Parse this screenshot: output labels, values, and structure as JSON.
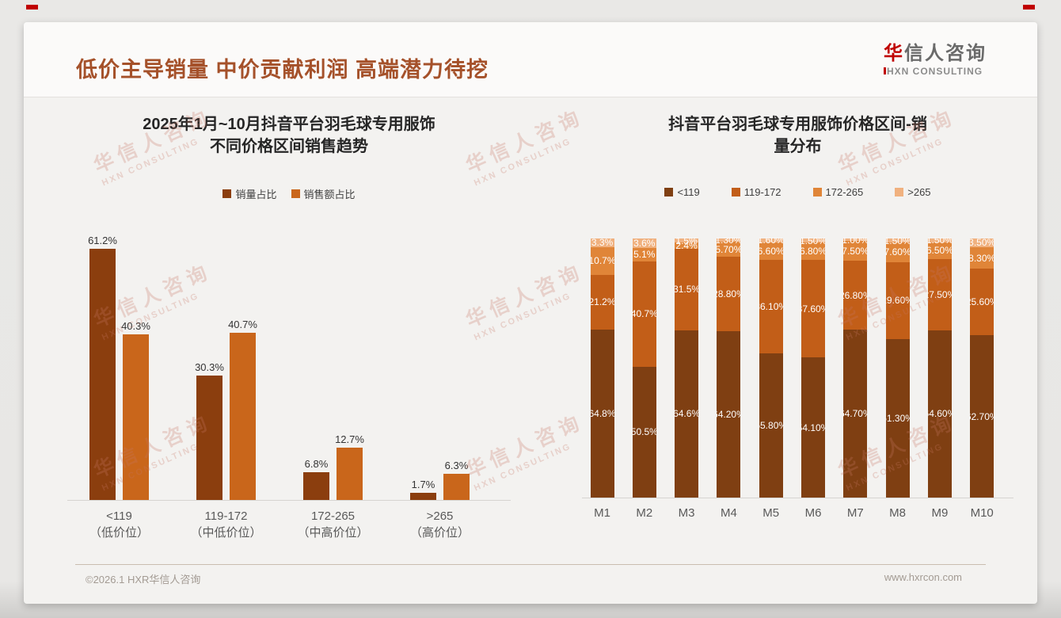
{
  "header": {
    "title": "低价主导销量 中价贡献利润 高端潜力待挖",
    "logo": {
      "zh_accent": "华",
      "zh_rest": "信人咨询",
      "en": "XN CONSULTING"
    }
  },
  "watermark": {
    "zh": "华信人咨询",
    "en": "HXN CONSULTING"
  },
  "footer": {
    "copyright": "©2026.1 HXR华信人咨询",
    "website": "www.hxrcon.com"
  },
  "colors": {
    "title_accent": "#A5512A",
    "logo_red": "#C00000",
    "sales_share": "#8B3E0E",
    "revenue_share": "#C9661B",
    "band_lt119": "#7F3F12",
    "band_119_172": "#C25E18",
    "band_172_265": "#E08538",
    "band_gt265": "#F0B17F"
  },
  "chart_data": [
    {
      "type": "bar",
      "title_lines": [
        "2025年1月~10月抖音平台羽毛球专用服饰",
        "不同价格区间销售趋势"
      ],
      "legend_position": "top",
      "grid": false,
      "ylim": [
        0,
        70
      ],
      "categories": [
        {
          "label": "<119",
          "sub": "（低价位）"
        },
        {
          "label": "119-172",
          "sub": "（中低价位）"
        },
        {
          "label": "172-265",
          "sub": "（中高价位）"
        },
        {
          "label": ">265",
          "sub": "（高价位）"
        }
      ],
      "series": [
        {
          "name": "销量占比",
          "color": "#8B3E0E",
          "values": [
            61.2,
            30.3,
            6.8,
            1.7
          ],
          "labels": [
            "61.2%",
            "30.3%",
            "6.8%",
            "1.7%"
          ]
        },
        {
          "name": "销售额占比",
          "color": "#C9661B",
          "values": [
            40.3,
            40.7,
            12.7,
            6.3
          ],
          "labels": [
            "40.3%",
            "40.7%",
            "12.7%",
            "6.3%"
          ]
        }
      ]
    },
    {
      "type": "stacked-bar",
      "title_lines": [
        "抖音平台羽毛球专用服饰价格区间-销",
        "量分布"
      ],
      "legend_position": "top",
      "grid": false,
      "ylim": [
        0,
        100
      ],
      "categories": [
        "M1",
        "M2",
        "M3",
        "M4",
        "M5",
        "M6",
        "M7",
        "M8",
        "M9",
        "M10"
      ],
      "series": [
        {
          "name": "<119",
          "color": "#7F3F12",
          "values": [
            64.8,
            50.5,
            64.6,
            64.2,
            55.8,
            54.1,
            64.7,
            61.3,
            64.6,
            62.7
          ],
          "labels": [
            "64.8%",
            "50.5%",
            "64.6%",
            "64.20%",
            "55.80%",
            "54.10%",
            "64.70%",
            "61.30%",
            "64.60%",
            "62.70%"
          ]
        },
        {
          "name": "119-172",
          "color": "#C25E18",
          "values": [
            21.2,
            40.7,
            31.5,
            28.8,
            36.1,
            37.6,
            26.8,
            29.6,
            27.5,
            25.6
          ],
          "labels": [
            "21.2%",
            "40.7%",
            "31.5%",
            "28.80%",
            "36.10%",
            "37.60%",
            "26.80%",
            "29.60%",
            "27.50%",
            "25.60%"
          ]
        },
        {
          "name": "172-265",
          "color": "#E08538",
          "values": [
            10.7,
            5.1,
            2.4,
            5.7,
            6.6,
            6.8,
            7.5,
            7.6,
            6.5,
            8.3
          ],
          "labels": [
            "10.7%",
            "5.1%",
            "2.4%",
            "5.70%",
            "6.60%",
            "6.80%",
            "7.50%",
            "7.60%",
            "6.50%",
            "8.30%"
          ]
        },
        {
          "name": ">265",
          "color": "#F0B17F",
          "values": [
            3.3,
            3.6,
            1.5,
            1.3,
            1.6,
            1.5,
            1.0,
            1.5,
            1.5,
            3.5
          ],
          "labels": [
            "3.3%",
            "3.6%",
            "1.5%",
            "1.30%",
            "1.60%",
            "1.50%",
            "1.00%",
            "1.50%",
            "1.50%",
            "3.50%"
          ]
        }
      ]
    }
  ]
}
